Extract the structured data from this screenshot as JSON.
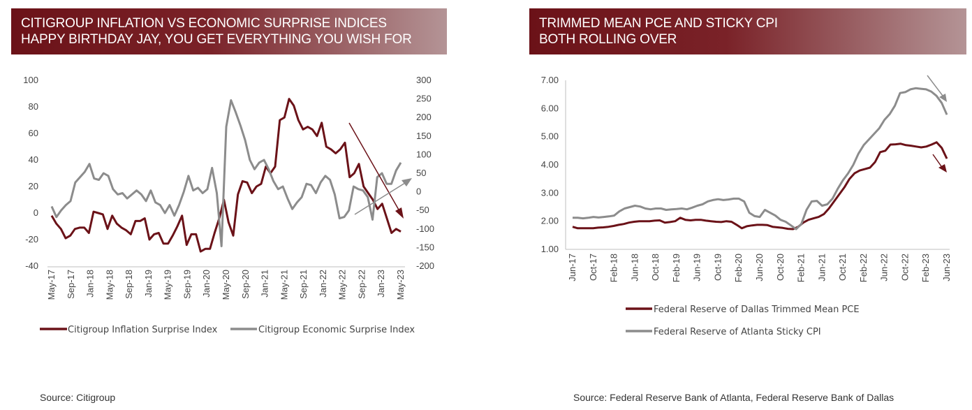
{
  "left_panel": {
    "title_lines": [
      "CITIGROUP INFLATION VS ECONOMIC SURPRISE INDICES",
      "HAPPY BIRTHDAY JAY, YOU GET EVERYTHING YOU WISH FOR"
    ],
    "source": "Source: Citigroup"
  },
  "right_panel": {
    "title_lines": [
      "TRIMMED MEAN PCE AND STICKY CPI",
      "BOTH ROLLING OVER"
    ],
    "source": "Source: Federal Reserve Bank of Atlanta, Federal Reserve Bank of Dallas"
  },
  "colors": {
    "maroon": "#6b1218",
    "gray": "#8c8c8c",
    "banner": "#6b1218"
  },
  "chart_data": [
    {
      "type": "line",
      "x_labels": [
        "May-17",
        "Sep-17",
        "Jan-18",
        "May-18",
        "Sep-18",
        "Jan-19",
        "May-19",
        "Sep-19",
        "Jan-20",
        "May-20",
        "Sep-20",
        "Jan-21",
        "May-21",
        "Sep-21",
        "Jan-22",
        "May-22",
        "Sep-22",
        "Jan-23",
        "May-23"
      ],
      "y_left": {
        "ylim": [
          -40,
          100
        ],
        "ticks": [
          "100",
          "80",
          "60",
          "40",
          "20",
          "0",
          "-20",
          "-40"
        ]
      },
      "y_right": {
        "ylim": [
          -200,
          300
        ],
        "ticks": [
          "300",
          "250",
          "200",
          "150",
          "100",
          "50",
          "0",
          "-50",
          "-100",
          "-150",
          "-200"
        ]
      },
      "legend_position": "bottom",
      "series": [
        {
          "name": "Citigroup Inflation Surprise Index",
          "axis": "left",
          "color": "#6b1218",
          "values": [
            -2,
            -8,
            -12,
            -19,
            -17,
            -12,
            -11,
            -11,
            -15,
            1,
            0,
            -1,
            -12,
            -2,
            -8,
            -11,
            -13,
            -16,
            -6,
            -6,
            -4,
            -20,
            -16,
            -15,
            -23,
            -23,
            -17,
            -10,
            -2,
            -24,
            -16,
            -16,
            -29,
            -27,
            -27,
            -15,
            -4,
            10,
            -7,
            -17,
            14,
            24,
            23,
            15,
            20,
            22,
            35,
            30,
            35,
            70,
            72,
            86,
            81,
            70,
            63,
            65,
            63,
            58,
            68,
            50,
            48,
            45,
            48,
            53,
            27,
            30,
            37,
            20,
            15,
            10,
            3,
            7,
            -4,
            -15,
            -12,
            -14
          ]
        },
        {
          "name": "Citigroup Economic Surprise Index",
          "axis": "left",
          "color": "#8c8c8c",
          "values": [
            5,
            -3,
            2,
            6,
            9,
            23,
            27,
            31,
            37,
            26,
            25,
            30,
            28,
            18,
            14,
            15,
            11,
            14,
            17,
            14,
            9,
            17,
            8,
            6,
            0,
            6,
            -2,
            6,
            16,
            28,
            17,
            19,
            15,
            18,
            34,
            15,
            -25,
            65,
            85,
            76,
            66,
            55,
            40,
            33,
            38,
            40,
            33,
            24,
            18,
            20,
            11,
            3,
            8,
            12,
            22,
            21,
            15,
            23,
            28,
            25,
            14,
            -4,
            -3,
            2,
            20,
            18,
            17,
            12,
            -5,
            27,
            30,
            22,
            22,
            32,
            38
          ]
        }
      ]
    },
    {
      "type": "line",
      "x_labels": [
        "Jun-17",
        "Oct-17",
        "Feb-18",
        "Jun-18",
        "Oct-18",
        "Feb-19",
        "Jun-19",
        "Oct-19",
        "Feb-20",
        "Jun-20",
        "Oct-20",
        "Feb-21",
        "Jun-21",
        "Oct-21",
        "Feb-22",
        "Jun-22",
        "Oct-22",
        "Feb-23",
        "Jun-23"
      ],
      "ylim": [
        1.0,
        7.0
      ],
      "y_ticks": [
        "7.00",
        "6.00",
        "5.00",
        "4.00",
        "3.00",
        "2.00",
        "1.00"
      ],
      "legend_position": "bottom",
      "series": [
        {
          "name": "Federal Reserve of Dallas Trimmed Mean PCE",
          "color": "#6b1218",
          "values": [
            1.8,
            1.75,
            1.75,
            1.75,
            1.75,
            1.77,
            1.78,
            1.8,
            1.83,
            1.87,
            1.9,
            1.95,
            1.98,
            2.0,
            2.0,
            2.0,
            2.02,
            2.03,
            1.95,
            1.97,
            2.0,
            2.12,
            2.05,
            2.03,
            2.05,
            2.05,
            2.02,
            2.0,
            1.98,
            1.97,
            2.0,
            1.98,
            1.87,
            1.75,
            1.82,
            1.85,
            1.87,
            1.87,
            1.86,
            1.8,
            1.78,
            1.76,
            1.73,
            1.72,
            1.8,
            1.95,
            2.05,
            2.1,
            2.15,
            2.25,
            2.45,
            2.7,
            2.95,
            3.2,
            3.5,
            3.7,
            3.8,
            3.85,
            3.9,
            4.1,
            4.45,
            4.5,
            4.72,
            4.73,
            4.75,
            4.7,
            4.68,
            4.65,
            4.62,
            4.65,
            4.72,
            4.8,
            4.6,
            4.22
          ]
        },
        {
          "name": "Federal Reserve of Atlanta Sticky CPI",
          "color": "#8c8c8c",
          "values": [
            2.12,
            2.12,
            2.1,
            2.12,
            2.15,
            2.13,
            2.15,
            2.17,
            2.2,
            2.35,
            2.45,
            2.5,
            2.55,
            2.52,
            2.45,
            2.42,
            2.45,
            2.45,
            2.4,
            2.42,
            2.43,
            2.45,
            2.42,
            2.48,
            2.55,
            2.6,
            2.7,
            2.75,
            2.78,
            2.75,
            2.77,
            2.8,
            2.8,
            2.7,
            2.3,
            2.18,
            2.15,
            2.4,
            2.3,
            2.2,
            2.05,
            1.98,
            1.85,
            1.72,
            1.9,
            2.4,
            2.7,
            2.72,
            2.55,
            2.6,
            2.8,
            3.15,
            3.45,
            3.7,
            4.0,
            4.4,
            4.7,
            4.9,
            5.1,
            5.3,
            5.6,
            5.8,
            6.1,
            6.55,
            6.58,
            6.68,
            6.72,
            6.7,
            6.68,
            6.6,
            6.45,
            6.2,
            5.78
          ]
        }
      ]
    }
  ]
}
